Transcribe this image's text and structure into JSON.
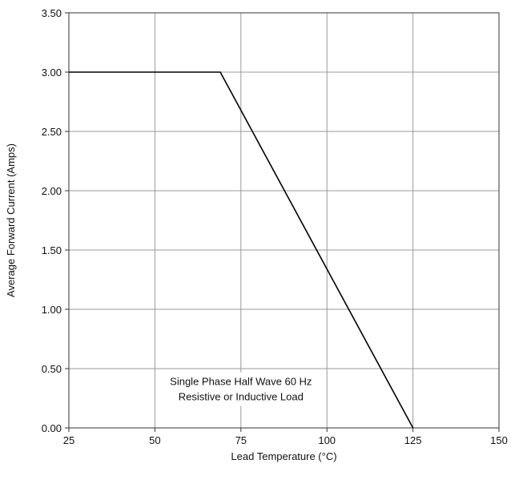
{
  "chart_data": {
    "type": "line",
    "title": "",
    "xlabel": "Lead Temperature (°C)",
    "ylabel": "Average Forward Current (Amps)",
    "xlim": [
      25,
      150
    ],
    "ylim": [
      0,
      3.5
    ],
    "xticks": [
      25,
      50,
      75,
      100,
      125,
      150
    ],
    "xtick_labels": [
      "25",
      "50",
      "75",
      "100",
      "125",
      "150"
    ],
    "yticks": [
      0,
      0.5,
      1,
      1.5,
      2,
      2.5,
      3,
      3.5
    ],
    "ytick_labels": [
      "0.00",
      "0.50",
      "1.00",
      "1.50",
      "2.00",
      "2.50",
      "3.00",
      "3.50"
    ],
    "grid": true,
    "series": [
      {
        "x": [
          25,
          69,
          125
        ],
        "y": [
          3.0,
          3.0,
          0.0
        ],
        "color": "#000000"
      }
    ],
    "annotation": {
      "lines": [
        "Single Phase Half Wave 60 Hz",
        "Resistive or Inductive Load"
      ],
      "x": 75,
      "y": 0.33
    }
  }
}
